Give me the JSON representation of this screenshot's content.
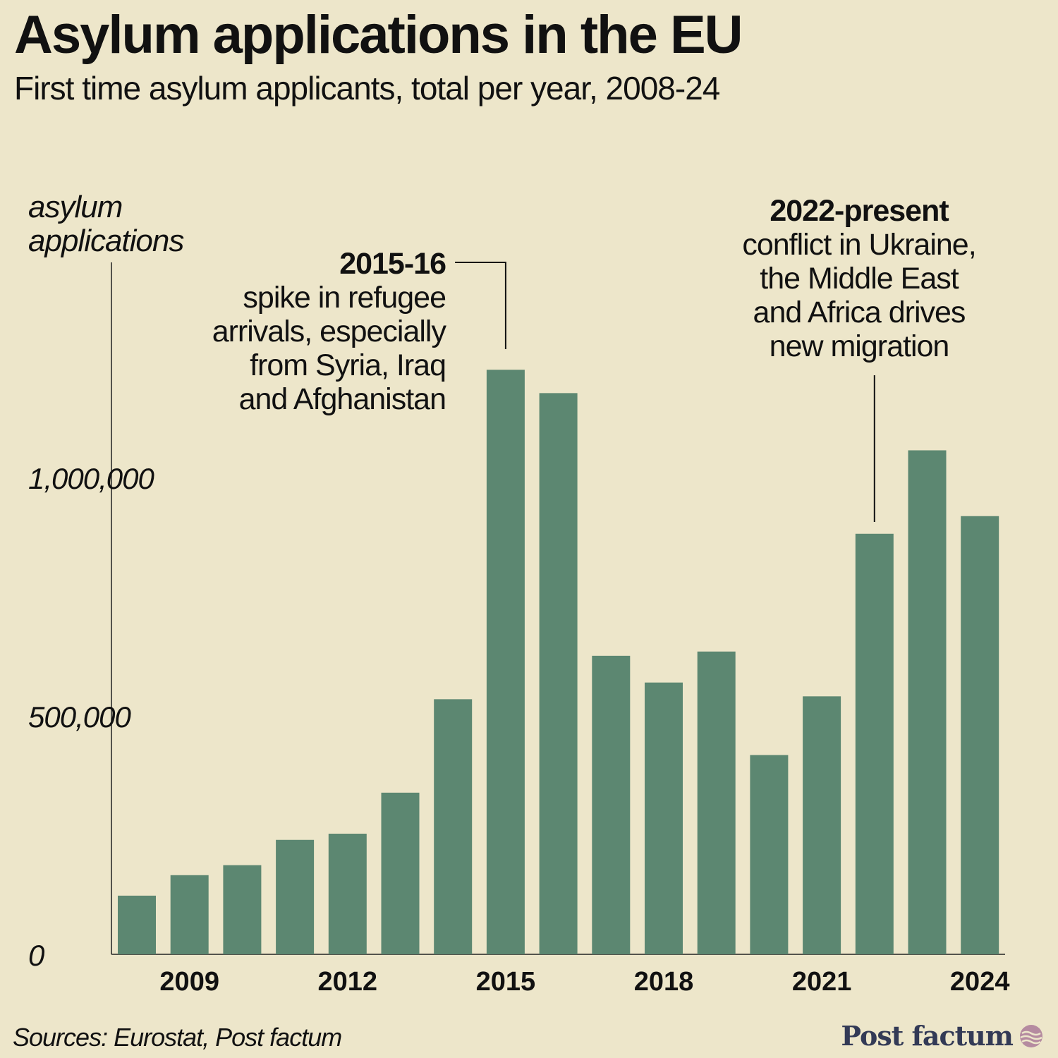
{
  "header": {
    "title": "Asylum applications in the EU",
    "subtitle": "First time asylum applicants, total per year, 2008-24"
  },
  "axis": {
    "ylabel_line1": "asylum",
    "ylabel_line2": "applications"
  },
  "annotations": {
    "spike": {
      "heading": "2015-16",
      "lines": [
        "spike in refugee",
        "arrivals, especially",
        "from Syria, Iraq",
        "and Afghanistan"
      ]
    },
    "present": {
      "heading": "2022-present",
      "lines": [
        "conflict in Ukraine,",
        "the Middle East",
        "and Africa drives",
        "new migration"
      ]
    }
  },
  "footer": {
    "source": "Sources: Eurostat, Post factum",
    "brand": "Post factum",
    "brand_icon": "wave-globe-icon"
  },
  "colors": {
    "background": "#EDE6CA",
    "bar": "#5C8771",
    "brand": "#333A56",
    "brand_icon": "#B58BA0"
  },
  "chart_data": {
    "type": "bar",
    "x": [
      2008,
      2009,
      2010,
      2011,
      2012,
      2013,
      2014,
      2015,
      2016,
      2017,
      2018,
      2019,
      2020,
      2021,
      2022,
      2023,
      2024
    ],
    "values": [
      123000,
      166000,
      187000,
      240000,
      253000,
      339000,
      535000,
      1226000,
      1177000,
      626000,
      570000,
      635000,
      418000,
      541000,
      882000,
      1057000,
      919000
    ],
    "xticks": [
      "2009",
      "2012",
      "2015",
      "2018",
      "2021",
      "2024"
    ],
    "yticks": [
      {
        "value": 0,
        "label": "0"
      },
      {
        "value": 500000,
        "label": "500,000"
      },
      {
        "value": 1000000,
        "label": "1,000,000"
      }
    ],
    "ylim": [
      0,
      1450000
    ],
    "grid": false,
    "legend": "none"
  }
}
